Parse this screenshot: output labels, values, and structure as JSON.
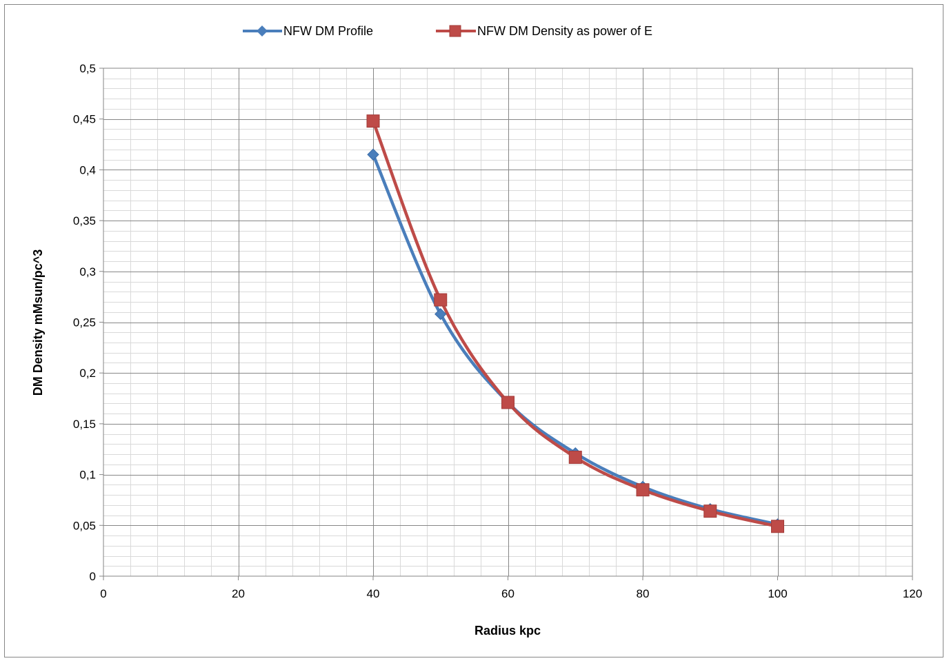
{
  "chart_data": {
    "type": "line",
    "title": "",
    "xlabel": "Radius kpc",
    "ylabel": "DM Density mMsun/pc^3",
    "xlim": [
      0,
      120
    ],
    "ylim": [
      0,
      0.5
    ],
    "x_major_step": 20,
    "x_minor_step": 4,
    "y_major_step": 0.05,
    "y_minor_step": 0.01,
    "x_tick_labels": [
      "0",
      "20",
      "40",
      "60",
      "80",
      "100",
      "120"
    ],
    "y_tick_labels": [
      "0",
      "0,05",
      "0,1",
      "0,15",
      "0,2",
      "0,25",
      "0,3",
      "0,35",
      "0,4",
      "0,45",
      "0,5"
    ],
    "grid": true,
    "smooth": true,
    "legend_position": "top",
    "series": [
      {
        "name": "NFW DM Profile",
        "color": "#4A7EBB",
        "marker": "diamond",
        "x": [
          40,
          50,
          60,
          70,
          80,
          90,
          100
        ],
        "y": [
          0.415,
          0.258,
          0.171,
          0.121,
          0.088,
          0.066,
          0.051
        ]
      },
      {
        "name": "NFW DM Density as power of E",
        "color": "#BE4B48",
        "marker": "square",
        "x": [
          40,
          50,
          60,
          70,
          80,
          90,
          100
        ],
        "y": [
          0.448,
          0.272,
          0.171,
          0.117,
          0.085,
          0.064,
          0.049
        ]
      }
    ]
  }
}
